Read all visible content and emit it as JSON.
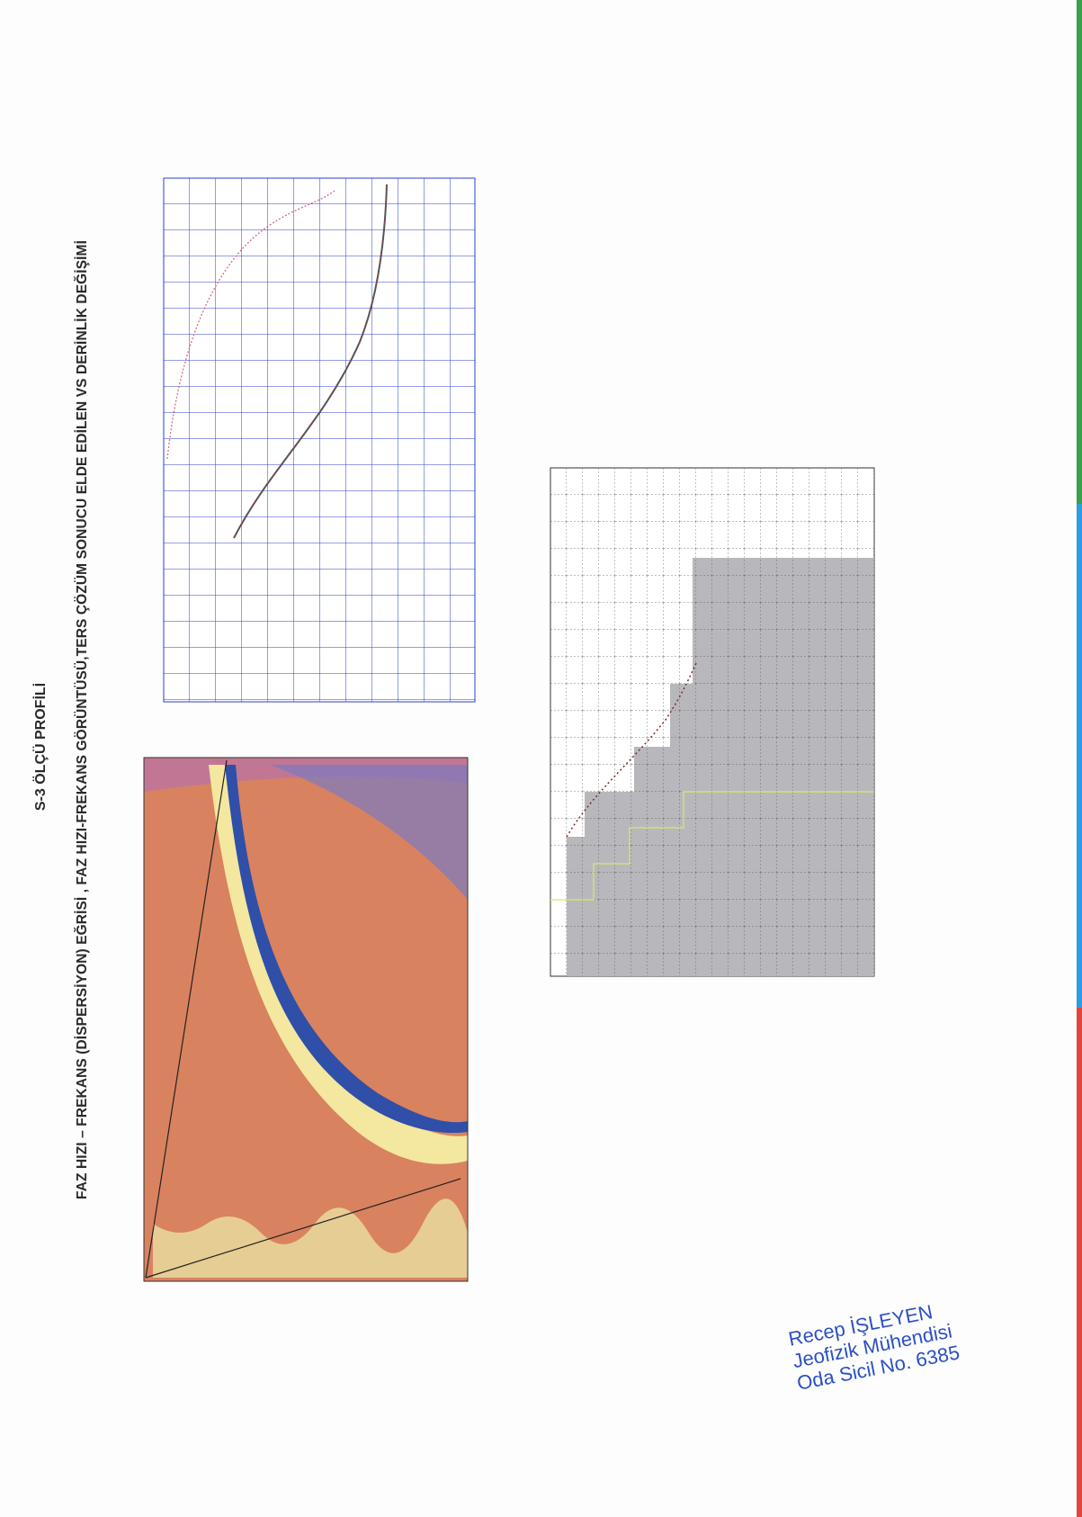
{
  "header": {
    "subtitle": "S-3 ÖLÇÜ PROFİLİ",
    "title": "FAZ HIZI – FREKANS (DİSPERSİYON) EĞRİSİ , FAZ HIZI-FREKANS GÖRÜNTÜSÜ,TERS ÇÖZÜM SONUCU ELDE EDİLEN VS DERİNLİK DEĞİŞİMİ"
  },
  "stamp": {
    "name": "Recep İŞLEYEN",
    "role": "Jeofizik Mühendisi",
    "registry": "Oda Sicil No. 6385"
  }
}
